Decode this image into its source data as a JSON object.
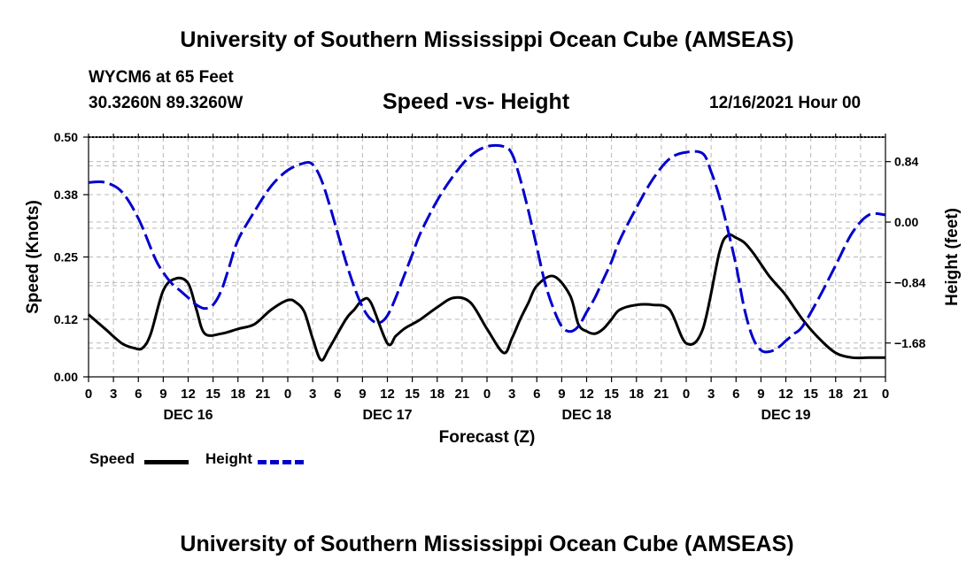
{
  "page": {
    "title": "University of Southern Mississippi Ocean Cube (AMSEAS)",
    "footer_title": "University of Southern Mississippi Ocean Cube (AMSEAS)",
    "station": "WYCM6 at 65 Feet",
    "coordinates": "30.3260N  89.3260W",
    "subtitle": "Speed -vs- Height",
    "date": "12/16/2021 Hour 00"
  },
  "chart_data": {
    "type": "line",
    "title": "Speed -vs- Height",
    "xlabel": "Forecast (Z)",
    "ylabel_left": "Speed (Knots)",
    "ylabel_right": "Height (feet)",
    "x_range_hours": [
      0,
      96
    ],
    "x_tick_step_hours": 3,
    "x_tick_labels": [
      "0",
      "3",
      "6",
      "9",
      "12",
      "15",
      "18",
      "21",
      "0",
      "3",
      "6",
      "9",
      "12",
      "15",
      "18",
      "21",
      "0",
      "3",
      "6",
      "9",
      "12",
      "15",
      "18",
      "21",
      "0",
      "3",
      "6",
      "9",
      "12",
      "15",
      "18",
      "21",
      "0"
    ],
    "day_labels": [
      {
        "label": "DEC 16",
        "hour": 12
      },
      {
        "label": "DEC 17",
        "hour": 36
      },
      {
        "label": "DEC 18",
        "hour": 60
      },
      {
        "label": "DEC 19",
        "hour": 84
      }
    ],
    "y_left": {
      "range": [
        0,
        0.5
      ],
      "ticks": [
        0,
        0.12,
        0.25,
        0.38,
        0.5
      ],
      "tick_labels": [
        "0.00",
        "0.12",
        "0.25",
        "0.38",
        "0.50"
      ]
    },
    "y_right": {
      "range": [
        -2.15,
        1.18
      ],
      "ticks": [
        0.84,
        0.0,
        -0.84,
        -1.68
      ],
      "tick_labels": [
        "0.84",
        "0.00",
        "−0.84",
        "−1.68"
      ]
    },
    "grid": true,
    "legend": [
      "Speed",
      "Height"
    ],
    "series": [
      {
        "name": "Speed",
        "axis": "left",
        "color": "#000000",
        "dash": "solid",
        "x": [
          0,
          2,
          4,
          5.5,
          6.5,
          7.5,
          9,
          10.5,
          12,
          13,
          14,
          16,
          18,
          20,
          22,
          24,
          25,
          26,
          27,
          28,
          29,
          31,
          32,
          33,
          34,
          36,
          37,
          38,
          39,
          40,
          42,
          44,
          46,
          48,
          50,
          51,
          52,
          53,
          54,
          56,
          58,
          59,
          60,
          61,
          62,
          63,
          64,
          66,
          68,
          70,
          72,
          74,
          76,
          77,
          78,
          79,
          80,
          81,
          82,
          83,
          84,
          86,
          88,
          90,
          92,
          94,
          96
        ],
        "y": [
          0.13,
          0.1,
          0.07,
          0.06,
          0.06,
          0.09,
          0.18,
          0.205,
          0.195,
          0.14,
          0.09,
          0.09,
          0.1,
          0.11,
          0.14,
          0.16,
          0.155,
          0.135,
          0.08,
          0.035,
          0.06,
          0.12,
          0.14,
          0.16,
          0.155,
          0.07,
          0.085,
          0.1,
          0.11,
          0.12,
          0.145,
          0.165,
          0.155,
          0.1,
          0.05,
          0.08,
          0.12,
          0.155,
          0.19,
          0.21,
          0.17,
          0.11,
          0.095,
          0.09,
          0.1,
          0.12,
          0.14,
          0.15,
          0.15,
          0.14,
          0.07,
          0.1,
          0.26,
          0.295,
          0.29,
          0.28,
          0.26,
          0.235,
          0.21,
          0.19,
          0.17,
          0.12,
          0.08,
          0.05,
          0.04,
          0.04,
          0.04
        ]
      },
      {
        "name": "Height",
        "axis": "right",
        "color": "#0000cc",
        "dash": "dashed",
        "x": [
          0,
          2,
          4,
          6,
          8,
          9,
          10,
          11,
          12,
          13,
          14,
          15,
          16,
          17,
          18,
          20,
          22,
          24,
          26,
          27,
          28,
          29,
          30,
          31,
          32,
          33,
          34,
          35,
          36,
          37,
          38,
          39,
          40,
          42,
          44,
          46,
          48,
          50,
          51,
          52,
          53,
          54,
          55,
          56,
          57,
          58,
          59,
          60,
          61,
          62,
          63,
          64,
          66,
          68,
          70,
          72,
          74,
          75,
          76,
          77,
          78,
          79,
          80,
          81,
          82,
          83,
          84,
          85,
          86,
          88,
          90,
          92,
          94,
          96
        ],
        "y": [
          0.55,
          0.55,
          0.42,
          0.05,
          -0.5,
          -0.7,
          -0.85,
          -0.95,
          -1.05,
          -1.15,
          -1.2,
          -1.15,
          -0.95,
          -0.6,
          -0.25,
          0.15,
          0.5,
          0.72,
          0.82,
          0.8,
          0.6,
          0.25,
          -0.15,
          -0.55,
          -0.9,
          -1.18,
          -1.35,
          -1.4,
          -1.3,
          -1.05,
          -0.75,
          -0.45,
          -0.15,
          0.3,
          0.65,
          0.92,
          1.05,
          1.05,
          0.95,
          0.6,
          0.15,
          -0.35,
          -0.85,
          -1.2,
          -1.45,
          -1.52,
          -1.45,
          -1.25,
          -1.05,
          -0.8,
          -0.55,
          -0.25,
          0.2,
          0.6,
          0.88,
          0.97,
          0.95,
          0.7,
          0.35,
          -0.1,
          -0.6,
          -1.2,
          -1.6,
          -1.78,
          -1.8,
          -1.75,
          -1.65,
          -1.55,
          -1.45,
          -1.05,
          -0.6,
          -0.15,
          0.1,
          0.1
        ]
      }
    ]
  }
}
